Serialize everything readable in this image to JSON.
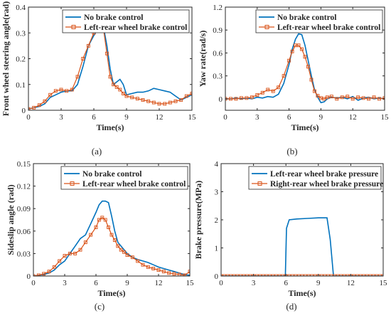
{
  "chart_data": [
    {
      "panel": "(a)",
      "type": "line",
      "xlabel": "Time(s)",
      "ylabel": "Front wheel steering angle(rad)",
      "xlim": [
        0,
        15
      ],
      "ylim": [
        0,
        0.4
      ],
      "xticks": [
        "0",
        "3",
        "6",
        "9",
        "12",
        "15"
      ],
      "yticks": [
        "0",
        "0.1",
        "0.2",
        "0.3",
        "0.4"
      ],
      "legend_position": "top-left",
      "series": [
        {
          "name": "No brake control",
          "color": "#0072BD",
          "marker": "none",
          "x": [
            0,
            0.5,
            1,
            1.5,
            2,
            2.5,
            3,
            3.5,
            4,
            4.5,
            5,
            5.5,
            6,
            6.3,
            6.6,
            6.9,
            7.2,
            7.5,
            7.8,
            8.1,
            8.4,
            8.7,
            9,
            9.5,
            10,
            10.5,
            11,
            11.5,
            12,
            12.5,
            13,
            13.5,
            14,
            14.5,
            15
          ],
          "y": [
            0.005,
            0.01,
            0.015,
            0.025,
            0.05,
            0.06,
            0.07,
            0.075,
            0.075,
            0.1,
            0.17,
            0.25,
            0.29,
            0.31,
            0.32,
            0.32,
            0.25,
            0.16,
            0.1,
            0.11,
            0.12,
            0.1,
            0.06,
            0.065,
            0.07,
            0.07,
            0.075,
            0.085,
            0.08,
            0.075,
            0.07,
            0.055,
            0.04,
            0.05,
            0.06
          ]
        },
        {
          "name": "Left-rear wheel brake control",
          "color": "#D95319",
          "marker": "square",
          "x": [
            0,
            0.5,
            1,
            1.5,
            2,
            2.5,
            3,
            3.5,
            4,
            4.5,
            5,
            5.5,
            6,
            6.3,
            6.6,
            6.9,
            7.2,
            7.5,
            7.8,
            8.1,
            8.4,
            8.7,
            9,
            9.5,
            10,
            10.5,
            11,
            11.5,
            12,
            12.5,
            13,
            13.5,
            14,
            14.5,
            15
          ],
          "y": [
            0.005,
            0.01,
            0.02,
            0.035,
            0.06,
            0.075,
            0.08,
            0.075,
            0.08,
            0.13,
            0.2,
            0.25,
            0.3,
            0.32,
            0.33,
            0.31,
            0.22,
            0.13,
            0.1,
            0.09,
            0.08,
            0.065,
            0.055,
            0.05,
            0.045,
            0.04,
            0.035,
            0.03,
            0.025,
            0.025,
            0.03,
            0.035,
            0.04,
            0.055,
            0.065
          ]
        }
      ]
    },
    {
      "panel": "(b)",
      "type": "line",
      "xlabel": "Time(s)",
      "ylabel": "Yaw rate(rad/s)",
      "xlim": [
        0,
        15
      ],
      "ylim": [
        -0.15,
        1.2
      ],
      "xticks": [
        "0",
        "3",
        "6",
        "9",
        "12",
        "15"
      ],
      "yticks": [
        "0",
        "0.3",
        "0.6",
        "0.9",
        "1.2"
      ],
      "legend_position": "top-left",
      "series": [
        {
          "name": "No brake control",
          "color": "#0072BD",
          "marker": "none",
          "x": [
            0,
            0.5,
            1,
            1.5,
            2,
            2.5,
            3,
            3.5,
            4,
            4.5,
            5,
            5.5,
            6,
            6.3,
            6.6,
            6.9,
            7.2,
            7.5,
            7.8,
            8.1,
            8.4,
            8.7,
            9,
            9.3,
            9.6,
            10,
            10.5,
            11,
            11.5,
            12,
            12.5,
            13,
            13.5,
            14,
            14.5,
            15
          ],
          "y": [
            0,
            0,
            0.01,
            0,
            0.01,
            0,
            0.02,
            0.01,
            0.03,
            0.02,
            0.06,
            0.2,
            0.45,
            0.65,
            0.78,
            0.85,
            0.84,
            0.7,
            0.5,
            0.3,
            0.12,
            0.02,
            -0.05,
            -0.04,
            0,
            0.02,
            0.01,
            0.02,
            0,
            0.03,
            -0.02,
            0.01,
            0.02,
            0,
            0.01,
            0
          ]
        },
        {
          "name": "Left-rear wheel brake control",
          "color": "#D95319",
          "marker": "square",
          "x": [
            0,
            0.5,
            1,
            1.5,
            2,
            2.5,
            3,
            3.5,
            4,
            4.5,
            5,
            5.5,
            6,
            6.3,
            6.6,
            6.9,
            7.2,
            7.5,
            7.8,
            8.1,
            8.4,
            8.7,
            9,
            9.3,
            9.6,
            10,
            10.5,
            11,
            11.5,
            12,
            12.5,
            13,
            13.5,
            14,
            14.5,
            15
          ],
          "y": [
            0,
            0,
            0,
            0.01,
            0.01,
            0.02,
            0.05,
            0.08,
            0.12,
            0.1,
            0.15,
            0.3,
            0.5,
            0.62,
            0.7,
            0.7,
            0.65,
            0.55,
            0.42,
            0.25,
            0.1,
            0.04,
            0.01,
            0,
            0.02,
            0.03,
            0,
            0.02,
            0.03,
            0,
            0.02,
            0.01,
            0,
            0.02,
            0,
            0.01
          ]
        }
      ]
    },
    {
      "panel": "(c)",
      "type": "line",
      "xlabel": "Time(s)",
      "ylabel": "Sideslip angle (rad)",
      "xlim": [
        0,
        15
      ],
      "ylim": [
        0,
        0.15
      ],
      "xticks": [
        "0",
        "3",
        "6",
        "9",
        "12",
        "15"
      ],
      "yticks": [
        "0",
        "0.03",
        "0.06",
        "0.09",
        "0.12",
        "0.15"
      ],
      "legend_position": "top-right",
      "series": [
        {
          "name": "No brake control",
          "color": "#0072BD",
          "marker": "none",
          "x": [
            0,
            0.5,
            1,
            1.5,
            2,
            2.5,
            3,
            3.5,
            4,
            4.5,
            5,
            5.5,
            6,
            6.3,
            6.6,
            6.9,
            7.2,
            7.5,
            7.8,
            8.1,
            8.4,
            8.7,
            9,
            9.5,
            10,
            10.5,
            11,
            11.5,
            12,
            12.5,
            13,
            13.5,
            14,
            14.5,
            15
          ],
          "y": [
            0,
            0.001,
            0.002,
            0.004,
            0.008,
            0.015,
            0.02,
            0.03,
            0.04,
            0.05,
            0.055,
            0.07,
            0.085,
            0.095,
            0.1,
            0.1,
            0.098,
            0.08,
            0.06,
            0.045,
            0.04,
            0.035,
            0.03,
            0.025,
            0.022,
            0.02,
            0.018,
            0.015,
            0.012,
            0.01,
            0.008,
            0.006,
            0.004,
            0.002,
            0.001
          ]
        },
        {
          "name": "Left-rear wheel brake control",
          "color": "#D95319",
          "marker": "square",
          "x": [
            0,
            0.5,
            1,
            1.5,
            2,
            2.5,
            3,
            3.5,
            4,
            4.5,
            5,
            5.5,
            6,
            6.3,
            6.6,
            6.9,
            7.2,
            7.5,
            7.8,
            8.1,
            8.4,
            8.7,
            9,
            9.5,
            10,
            10.5,
            11,
            11.5,
            12,
            12.5,
            13,
            13.5,
            14,
            14.5,
            15
          ],
          "y": [
            0,
            0.001,
            0.003,
            0.006,
            0.012,
            0.02,
            0.027,
            0.03,
            0.03,
            0.035,
            0.045,
            0.055,
            0.065,
            0.075,
            0.078,
            0.075,
            0.065,
            0.055,
            0.048,
            0.04,
            0.035,
            0.032,
            0.028,
            0.025,
            0.02,
            0.015,
            0.012,
            0.01,
            0.008,
            0.006,
            0.004,
            0.003,
            0.002,
            0.001,
            0.006
          ]
        }
      ]
    },
    {
      "panel": "(d)",
      "type": "line",
      "xlabel": "Time(s)",
      "ylabel": "Brake pressure(MPa)",
      "xlim": [
        0,
        15
      ],
      "ylim": [
        0,
        4
      ],
      "xticks": [
        "0",
        "3",
        "6",
        "9",
        "12",
        "15"
      ],
      "yticks": [
        "0",
        "1",
        "2",
        "3",
        "4"
      ],
      "legend_position": "top-right",
      "series": [
        {
          "name": "Left-rear wheel brake pressure",
          "color": "#0072BD",
          "marker": "none",
          "x": [
            0,
            5.95,
            6.05,
            6.3,
            7,
            8,
            9,
            9.8,
            10.1,
            10.4,
            15
          ],
          "y": [
            0,
            0,
            1.7,
            2.0,
            2.03,
            2.05,
            2.07,
            2.07,
            1.3,
            0,
            0
          ]
        },
        {
          "name": "Right-rear wheel brake pressure",
          "color": "#D95319",
          "marker": "square",
          "x": [
            0,
            15
          ],
          "y": [
            0,
            0
          ]
        }
      ]
    }
  ]
}
